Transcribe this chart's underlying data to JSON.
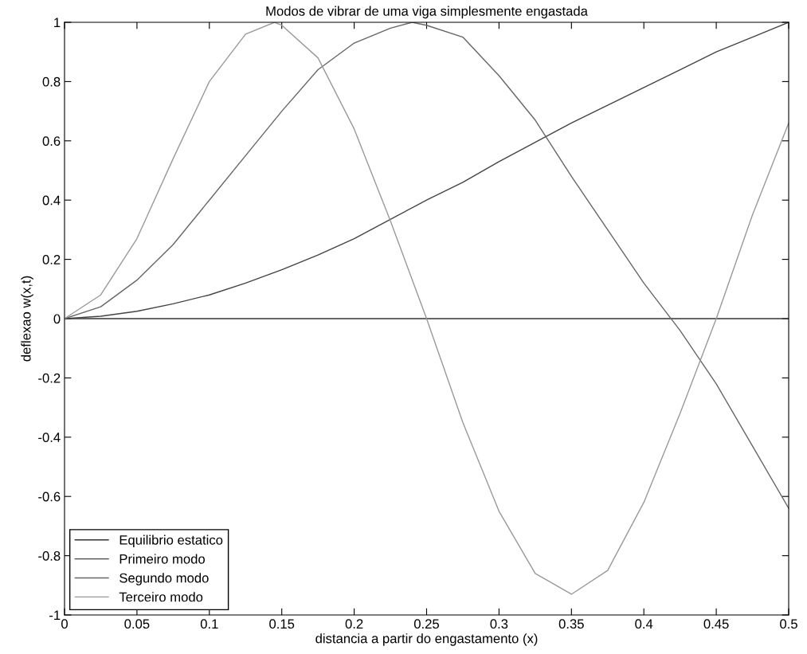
{
  "chart_data": {
    "type": "line",
    "title": "Modos de vibrar de uma viga simplesmente engastada",
    "xlabel": "distancia a partir do engastamento (x)",
    "ylabel": "deflexao w(x,t)",
    "series": [
      {
        "name": "Equilibrio estatico",
        "color": "#333333",
        "x": [
          0,
          0.5
        ],
        "values": [
          0,
          0
        ]
      },
      {
        "name": "Primeiro modo",
        "color": "#444444",
        "x": [
          0,
          0.025,
          0.05,
          0.075,
          0.1,
          0.125,
          0.15,
          0.175,
          0.2,
          0.225,
          0.25,
          0.275,
          0.3,
          0.325,
          0.35,
          0.375,
          0.4,
          0.425,
          0.45,
          0.475,
          0.5
        ],
        "values": [
          0,
          0.008,
          0.025,
          0.05,
          0.08,
          0.12,
          0.165,
          0.215,
          0.27,
          0.335,
          0.4,
          0.46,
          0.53,
          0.595,
          0.66,
          0.72,
          0.78,
          0.84,
          0.9,
          0.95,
          1.0
        ]
      },
      {
        "name": "Segundo modo",
        "color": "#666666",
        "x": [
          0,
          0.025,
          0.05,
          0.075,
          0.1,
          0.125,
          0.15,
          0.175,
          0.2,
          0.225,
          0.24,
          0.25,
          0.275,
          0.3,
          0.325,
          0.35,
          0.375,
          0.4,
          0.425,
          0.45,
          0.475,
          0.5
        ],
        "values": [
          0,
          0.04,
          0.13,
          0.25,
          0.4,
          0.55,
          0.7,
          0.84,
          0.93,
          0.98,
          1.0,
          0.99,
          0.95,
          0.82,
          0.67,
          0.48,
          0.3,
          0.12,
          -0.04,
          -0.22,
          -0.43,
          -0.64
        ]
      },
      {
        "name": "Terceiro modo",
        "color": "#999999",
        "x": [
          0,
          0.025,
          0.05,
          0.075,
          0.1,
          0.125,
          0.145,
          0.15,
          0.175,
          0.2,
          0.225,
          0.25,
          0.275,
          0.3,
          0.325,
          0.35,
          0.375,
          0.4,
          0.425,
          0.45,
          0.475,
          0.5
        ],
        "values": [
          0,
          0.08,
          0.27,
          0.54,
          0.8,
          0.96,
          1.0,
          0.99,
          0.88,
          0.64,
          0.33,
          0.0,
          -0.35,
          -0.65,
          -0.86,
          -0.93,
          -0.85,
          -0.62,
          -0.32,
          0.0,
          0.35,
          0.66
        ]
      }
    ],
    "xlim": [
      0,
      0.5
    ],
    "xticks": [
      0,
      0.05,
      0.1,
      0.15,
      0.2,
      0.25,
      0.3,
      0.35,
      0.4,
      0.45,
      0.5
    ],
    "ylim": [
      -1,
      1
    ],
    "yticks": [
      -1,
      -0.8,
      -0.6,
      -0.4,
      -0.2,
      0,
      0.2,
      0.4,
      0.6,
      0.8,
      1
    ],
    "grid": false,
    "legend": "bottom left",
    "marker": "none",
    "line_style": "solid"
  }
}
